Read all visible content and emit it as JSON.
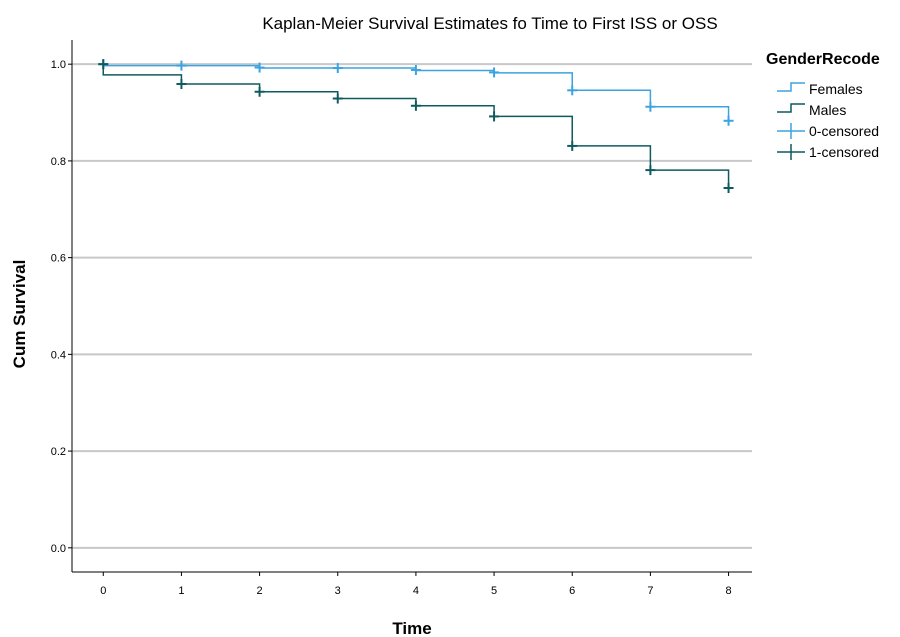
{
  "chart_data": {
    "type": "line",
    "step": true,
    "title": "Kaplan-Meier Survival Estimates fo Time to First ISS or OSS",
    "xlabel": "Time",
    "ylabel": "Cum Survival",
    "xlim": [
      -0.4,
      8.3
    ],
    "ylim": [
      -0.05,
      1.05
    ],
    "x_ticks": [
      0,
      1,
      2,
      3,
      4,
      5,
      6,
      7,
      8
    ],
    "x_tick_labels": [
      "0",
      "1",
      "2",
      "3",
      "4",
      "5",
      "6",
      "7",
      "8"
    ],
    "y_ticks": [
      0.0,
      0.2,
      0.4,
      0.6,
      0.8,
      1.0
    ],
    "y_tick_labels": [
      "0.0",
      "0.2",
      "0.4",
      "0.6",
      "0.8",
      "1.0"
    ],
    "grid": {
      "horizontal": true,
      "vertical": false
    },
    "legend": {
      "title": "GenderRecode",
      "placement": "right",
      "entries": [
        "Females",
        "Males",
        "0-censored",
        "1-censored"
      ]
    },
    "series": [
      {
        "name": "Females",
        "color": "#3ba3e0",
        "steps": [
          {
            "x": 0,
            "y": 1.0
          },
          {
            "x": 0,
            "y": 0.997
          },
          {
            "x": 2,
            "y": 0.992
          },
          {
            "x": 4,
            "y": 0.987
          },
          {
            "x": 5,
            "y": 0.982
          },
          {
            "x": 6,
            "y": 0.946
          },
          {
            "x": 7,
            "y": 0.912
          },
          {
            "x": 8,
            "y": 0.883
          }
        ],
        "censored": [
          {
            "x": 0,
            "y": 1.0
          },
          {
            "x": 1,
            "y": 0.997
          },
          {
            "x": 2,
            "y": 0.993
          },
          {
            "x": 3,
            "y": 0.992
          },
          {
            "x": 4,
            "y": 0.988
          },
          {
            "x": 5,
            "y": 0.983
          },
          {
            "x": 6,
            "y": 0.946
          },
          {
            "x": 7,
            "y": 0.912
          },
          {
            "x": 8,
            "y": 0.883
          }
        ]
      },
      {
        "name": "Males",
        "color": "#0e5a5e",
        "steps": [
          {
            "x": 0,
            "y": 1.0
          },
          {
            "x": 0,
            "y": 0.978
          },
          {
            "x": 1,
            "y": 0.959
          },
          {
            "x": 2,
            "y": 0.943
          },
          {
            "x": 3,
            "y": 0.929
          },
          {
            "x": 4,
            "y": 0.914
          },
          {
            "x": 5,
            "y": 0.892
          },
          {
            "x": 6,
            "y": 0.831
          },
          {
            "x": 7,
            "y": 0.781
          },
          {
            "x": 8,
            "y": 0.744
          }
        ],
        "censored": [
          {
            "x": 0,
            "y": 1.0
          },
          {
            "x": 1,
            "y": 0.959
          },
          {
            "x": 2,
            "y": 0.943
          },
          {
            "x": 3,
            "y": 0.929
          },
          {
            "x": 4,
            "y": 0.914
          },
          {
            "x": 5,
            "y": 0.892
          },
          {
            "x": 6,
            "y": 0.831
          },
          {
            "x": 7,
            "y": 0.781
          },
          {
            "x": 8,
            "y": 0.744
          }
        ]
      }
    ]
  }
}
